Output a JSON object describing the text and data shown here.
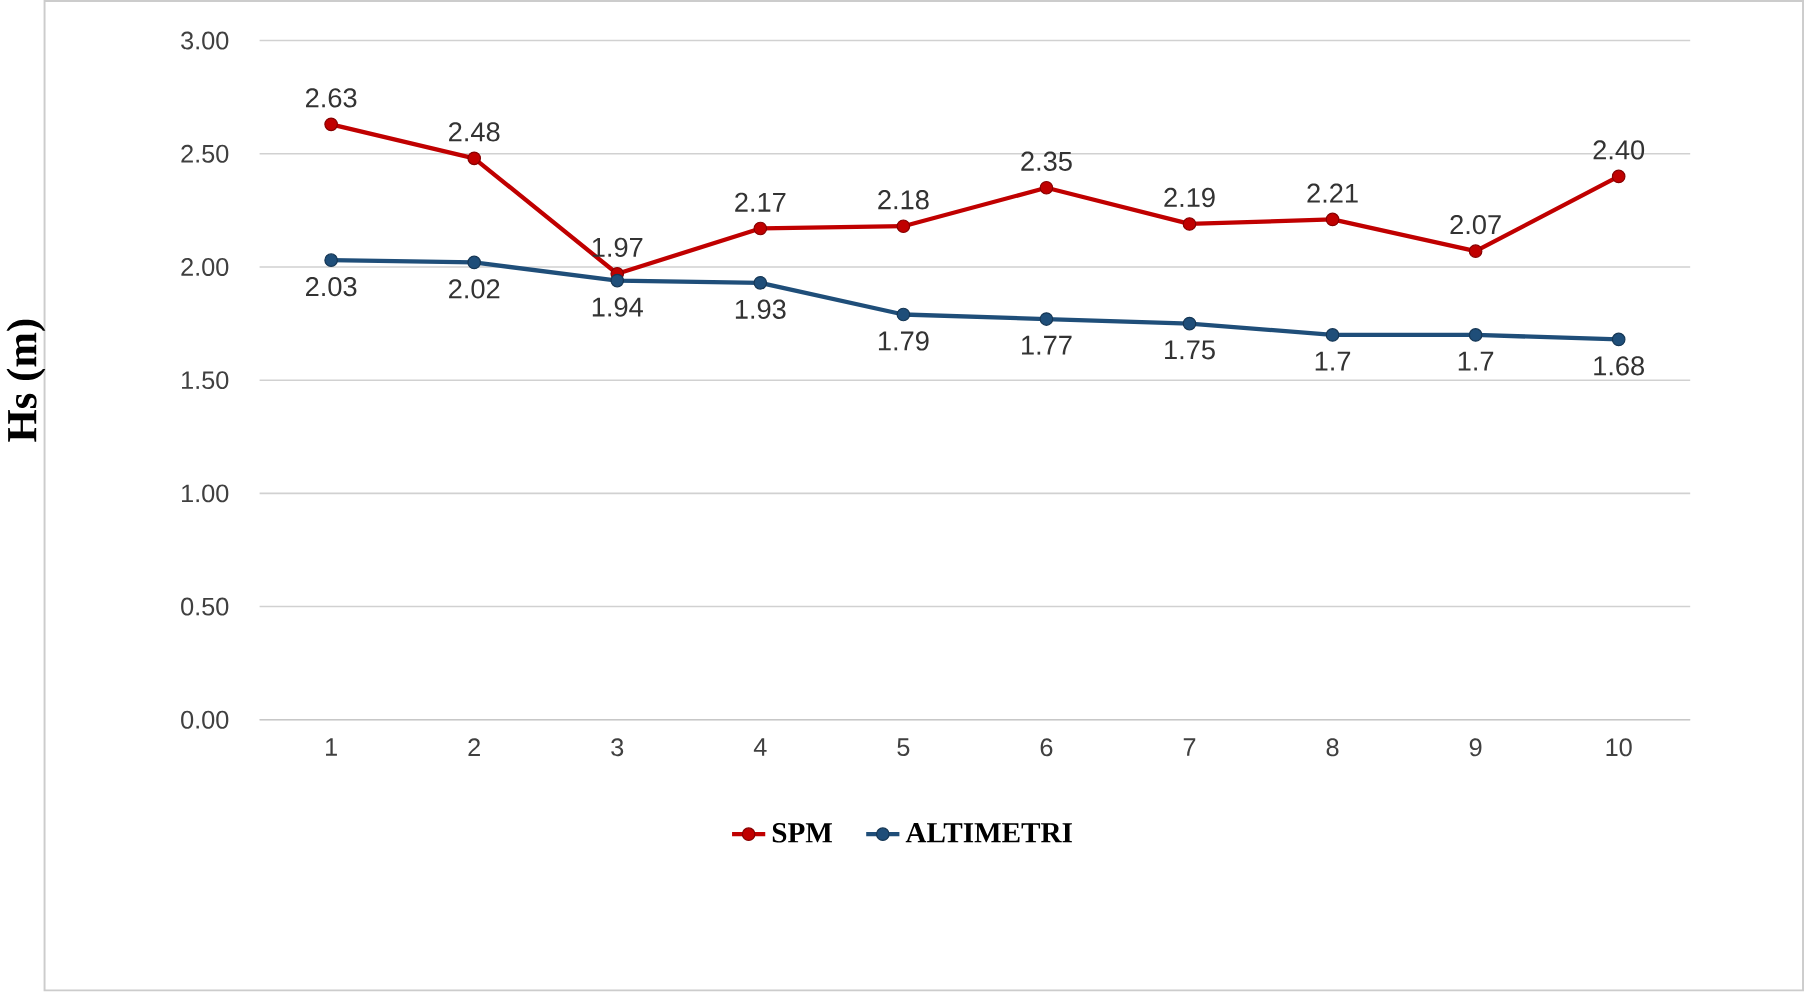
{
  "chart_data": {
    "type": "line",
    "ylabel": "Hs (m)",
    "categories": [
      "1",
      "2",
      "3",
      "4",
      "5",
      "6",
      "7",
      "8",
      "9",
      "10"
    ],
    "series": [
      {
        "name": "SPM",
        "color": "#c00000",
        "values": [
          2.63,
          2.48,
          1.97,
          2.17,
          2.18,
          2.35,
          2.19,
          2.21,
          2.07,
          2.4
        ],
        "value_labels": [
          "2.63",
          "2.48",
          "1.97",
          "2.17",
          "2.18",
          "2.35",
          "2.19",
          "2.21",
          "2.07",
          "2.40"
        ]
      },
      {
        "name": "ALTIMETRI",
        "color": "#1f4e79",
        "values": [
          2.03,
          2.02,
          1.94,
          1.93,
          1.79,
          1.77,
          1.75,
          1.7,
          1.7,
          1.68
        ],
        "value_labels": [
          "2.03",
          "2.02",
          "1.94",
          "1.93",
          "1.79",
          "1.77",
          "1.75",
          "1.7",
          "1.7",
          "1.68"
        ]
      }
    ],
    "ylim": [
      0,
      3
    ],
    "yticks": [
      {
        "value": 0,
        "label": "0.00"
      },
      {
        "value": 0.5,
        "label": "0.50"
      },
      {
        "value": 1,
        "label": "1.00"
      },
      {
        "value": 1.5,
        "label": "1.50"
      },
      {
        "value": 2,
        "label": "2.00"
      },
      {
        "value": 2.5,
        "label": "2.50"
      },
      {
        "value": 3,
        "label": "3.00"
      }
    ],
    "grid": "y",
    "legend": "bottom",
    "marker": "circle",
    "line_style": "solid"
  }
}
